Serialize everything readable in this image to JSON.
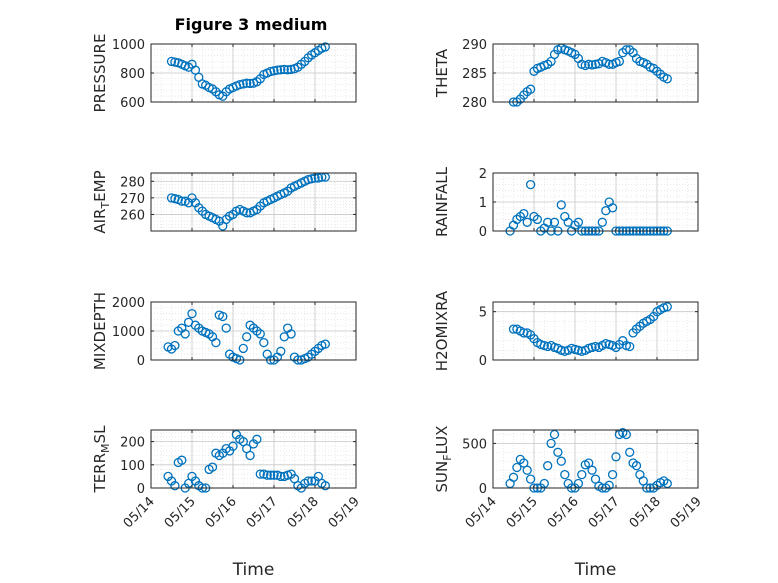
{
  "title": "Figure 3 medium",
  "marker_color": "#0072BD",
  "chart_data": [
    {
      "type": "scatter",
      "ylabel": "PRESSURE",
      "xlabel": "",
      "xlim": [
        "05/14",
        "05/19"
      ],
      "ylim": [
        600,
        1000
      ],
      "yticks": [
        600,
        800,
        1000
      ],
      "x_ticklabels": [],
      "x": [
        "05/14 12:00",
        "05/14 14:00",
        "05/14 16:00",
        "05/14 18:00",
        "05/14 20:00",
        "05/14 22:00",
        "05/15 00:00",
        "05/15 02:00",
        "05/15 04:00",
        "05/15 06:00",
        "05/15 08:00",
        "05/15 10:00",
        "05/15 12:00",
        "05/15 14:00",
        "05/15 16:00",
        "05/15 18:00",
        "05/15 20:00",
        "05/15 22:00",
        "05/16 00:00",
        "05/16 02:00",
        "05/16 04:00",
        "05/16 06:00",
        "05/16 08:00",
        "05/16 10:00",
        "05/16 12:00",
        "05/16 14:00",
        "05/16 16:00",
        "05/16 18:00",
        "05/16 20:00",
        "05/16 22:00",
        "05/17 00:00",
        "05/17 02:00",
        "05/17 04:00",
        "05/17 06:00",
        "05/17 08:00",
        "05/17 10:00",
        "05/17 12:00",
        "05/17 14:00",
        "05/17 16:00",
        "05/17 18:00",
        "05/17 20:00",
        "05/17 22:00",
        "05/18 00:00",
        "05/18 02:00",
        "05/18 04:00",
        "05/18 06:00"
      ],
      "y": [
        880,
        875,
        870,
        860,
        850,
        840,
        860,
        820,
        770,
        725,
        715,
        700,
        690,
        670,
        650,
        640,
        670,
        690,
        700,
        710,
        720,
        725,
        730,
        728,
        730,
        740,
        760,
        790,
        800,
        810,
        815,
        820,
        822,
        825,
        822,
        825,
        830,
        840,
        860,
        880,
        905,
        925,
        940,
        955,
        970,
        980
      ]
    },
    {
      "type": "scatter",
      "ylabel": "THETA",
      "xlabel": "",
      "xlim": [
        "05/14",
        "05/19"
      ],
      "ylim": [
        280,
        290
      ],
      "yticks": [
        280,
        285,
        290
      ],
      "x_ticklabels": [],
      "x": [
        "05/14 12:00",
        "05/14 14:00",
        "05/14 16:00",
        "05/14 18:00",
        "05/14 20:00",
        "05/14 22:00",
        "05/15 00:00",
        "05/15 02:00",
        "05/15 04:00",
        "05/15 06:00",
        "05/15 08:00",
        "05/15 10:00",
        "05/15 12:00",
        "05/15 14:00",
        "05/15 16:00",
        "05/15 18:00",
        "05/15 20:00",
        "05/15 22:00",
        "05/16 00:00",
        "05/16 02:00",
        "05/16 04:00",
        "05/16 06:00",
        "05/16 08:00",
        "05/16 10:00",
        "05/16 12:00",
        "05/16 14:00",
        "05/16 16:00",
        "05/16 18:00",
        "05/16 20:00",
        "05/16 22:00",
        "05/17 00:00",
        "05/17 02:00",
        "05/17 04:00",
        "05/17 06:00",
        "05/17 08:00",
        "05/17 10:00",
        "05/17 12:00",
        "05/17 14:00",
        "05/17 16:00",
        "05/17 18:00",
        "05/17 20:00",
        "05/17 22:00",
        "05/18 00:00",
        "05/18 02:00",
        "05/18 04:00",
        "05/18 06:00"
      ],
      "y": [
        280.0,
        280.0,
        280.5,
        281.2,
        281.8,
        282.2,
        285.3,
        285.8,
        286.0,
        286.3,
        286.5,
        287.0,
        288.2,
        289.0,
        289.3,
        289.0,
        288.8,
        288.5,
        288.2,
        287.5,
        286.5,
        286.3,
        286.5,
        286.4,
        286.5,
        286.6,
        287.0,
        286.8,
        286.5,
        286.5,
        286.8,
        287.0,
        288.5,
        289.0,
        289.0,
        288.5,
        287.5,
        287.0,
        286.8,
        286.5,
        286.0,
        285.8,
        285.3,
        284.8,
        284.3,
        284.0
      ]
    },
    {
      "type": "scatter",
      "ylabel": "AIR_TEMP",
      "xlabel": "",
      "xlim": [
        "05/14",
        "05/19"
      ],
      "ylim": [
        250,
        285
      ],
      "yticks": [
        260,
        270,
        280
      ],
      "x_ticklabels": [],
      "x": [
        "05/14 12:00",
        "05/14 14:00",
        "05/14 16:00",
        "05/14 18:00",
        "05/14 20:00",
        "05/14 22:00",
        "05/15 00:00",
        "05/15 02:00",
        "05/15 04:00",
        "05/15 06:00",
        "05/15 08:00",
        "05/15 10:00",
        "05/15 12:00",
        "05/15 14:00",
        "05/15 16:00",
        "05/15 18:00",
        "05/15 20:00",
        "05/15 22:00",
        "05/16 00:00",
        "05/16 02:00",
        "05/16 04:00",
        "05/16 06:00",
        "05/16 08:00",
        "05/16 10:00",
        "05/16 12:00",
        "05/16 14:00",
        "05/16 16:00",
        "05/16 18:00",
        "05/16 20:00",
        "05/16 22:00",
        "05/17 00:00",
        "05/17 02:00",
        "05/17 04:00",
        "05/17 06:00",
        "05/17 08:00",
        "05/17 10:00",
        "05/17 12:00",
        "05/17 14:00",
        "05/17 16:00",
        "05/17 18:00",
        "05/17 20:00",
        "05/17 22:00",
        "05/18 00:00",
        "05/18 02:00",
        "05/18 04:00",
        "05/18 06:00"
      ],
      "y": [
        270,
        269.5,
        269,
        268,
        268,
        267,
        270,
        267,
        264,
        262,
        260,
        259,
        258,
        257,
        256,
        253,
        257,
        259,
        260,
        262,
        263,
        262,
        261,
        261,
        262,
        263,
        265,
        267,
        268,
        269,
        270,
        271,
        272,
        273,
        274,
        276,
        277,
        278,
        279,
        280,
        281,
        281.5,
        282,
        282,
        282.5,
        282.5
      ]
    },
    {
      "type": "scatter",
      "ylabel": "RAINFALL",
      "xlabel": "",
      "xlim": [
        "05/14",
        "05/19"
      ],
      "ylim": [
        0,
        2
      ],
      "yticks": [
        0,
        1,
        2
      ],
      "x_ticklabels": [],
      "x": [
        "05/14 10:00",
        "05/14 12:00",
        "05/14 14:00",
        "05/14 16:00",
        "05/14 18:00",
        "05/14 20:00",
        "05/14 22:00",
        "05/15 00:00",
        "05/15 02:00",
        "05/15 04:00",
        "05/15 06:00",
        "05/15 08:00",
        "05/15 10:00",
        "05/15 12:00",
        "05/15 14:00",
        "05/15 16:00",
        "05/15 18:00",
        "05/15 20:00",
        "05/15 22:00",
        "05/16 00:00",
        "05/16 02:00",
        "05/16 04:00",
        "05/16 06:00",
        "05/16 08:00",
        "05/16 10:00",
        "05/16 12:00",
        "05/16 14:00",
        "05/16 16:00",
        "05/16 18:00",
        "05/16 20:00",
        "05/16 22:00",
        "05/17 00:00",
        "05/17 02:00",
        "05/17 04:00",
        "05/17 06:00",
        "05/17 08:00",
        "05/17 10:00",
        "05/17 12:00",
        "05/17 14:00",
        "05/17 16:00",
        "05/17 18:00",
        "05/17 20:00",
        "05/17 22:00",
        "05/18 00:00",
        "05/18 02:00",
        "05/18 04:00",
        "05/18 06:00"
      ],
      "y": [
        0.0,
        0.2,
        0.4,
        0.5,
        0.6,
        0.3,
        1.6,
        0.5,
        0.4,
        0.0,
        0.1,
        0.3,
        0.0,
        0.3,
        0.0,
        0.9,
        0.5,
        0.3,
        0.0,
        0.2,
        0.3,
        0.0,
        0.0,
        0.0,
        0.0,
        0.0,
        0.0,
        0.3,
        0.7,
        1.0,
        0.8,
        0.0,
        0.0,
        0.0,
        0.0,
        0.0,
        0.0,
        0.0,
        0.0,
        0.0,
        0.0,
        0.0,
        0.0,
        0.0,
        0.0,
        0.0,
        0.0
      ]
    },
    {
      "type": "scatter",
      "ylabel": "MIXDEPTH",
      "xlabel": "",
      "xlim": [
        "05/14",
        "05/19"
      ],
      "ylim": [
        0,
        2000
      ],
      "yticks": [
        0,
        1000,
        2000
      ],
      "x_ticklabels": [],
      "x": [
        "05/14 10:00",
        "05/14 12:00",
        "05/14 14:00",
        "05/14 16:00",
        "05/14 18:00",
        "05/14 20:00",
        "05/14 22:00",
        "05/15 00:00",
        "05/15 02:00",
        "05/15 04:00",
        "05/15 06:00",
        "05/15 08:00",
        "05/15 10:00",
        "05/15 12:00",
        "05/15 14:00",
        "05/15 16:00",
        "05/15 18:00",
        "05/15 20:00",
        "05/15 22:00",
        "05/16 00:00",
        "05/16 02:00",
        "05/16 04:00",
        "05/16 06:00",
        "05/16 08:00",
        "05/16 10:00",
        "05/16 12:00",
        "05/16 14:00",
        "05/16 16:00",
        "05/16 18:00",
        "05/16 20:00",
        "05/16 22:00",
        "05/17 00:00",
        "05/17 02:00",
        "05/17 04:00",
        "05/17 06:00",
        "05/17 08:00",
        "05/17 10:00",
        "05/17 12:00",
        "05/17 14:00",
        "05/17 16:00",
        "05/17 18:00",
        "05/17 20:00",
        "05/17 22:00",
        "05/18 00:00",
        "05/18 02:00",
        "05/18 04:00",
        "05/18 06:00"
      ],
      "y": [
        450,
        380,
        500,
        1000,
        1100,
        900,
        1300,
        1600,
        1200,
        1100,
        1000,
        950,
        900,
        800,
        600,
        1550,
        1500,
        1100,
        200,
        100,
        50,
        0,
        400,
        800,
        1200,
        1100,
        1000,
        900,
        600,
        200,
        0,
        0,
        100,
        300,
        800,
        1100,
        900,
        100,
        0,
        0,
        50,
        100,
        200,
        300,
        400,
        500,
        550
      ]
    },
    {
      "type": "scatter",
      "ylabel": "H2OMIXRA",
      "xlabel": "",
      "xlim": [
        "05/14",
        "05/19"
      ],
      "ylim": [
        0,
        6
      ],
      "yticks": [
        0,
        5
      ],
      "x_ticklabels": [],
      "x": [
        "05/14 12:00",
        "05/14 14:00",
        "05/14 16:00",
        "05/14 18:00",
        "05/14 20:00",
        "05/14 22:00",
        "05/15 00:00",
        "05/15 02:00",
        "05/15 04:00",
        "05/15 06:00",
        "05/15 08:00",
        "05/15 10:00",
        "05/15 12:00",
        "05/15 14:00",
        "05/15 16:00",
        "05/15 18:00",
        "05/15 20:00",
        "05/15 22:00",
        "05/16 00:00",
        "05/16 02:00",
        "05/16 04:00",
        "05/16 06:00",
        "05/16 08:00",
        "05/16 10:00",
        "05/16 12:00",
        "05/16 14:00",
        "05/16 16:00",
        "05/16 18:00",
        "05/16 20:00",
        "05/16 22:00",
        "05/17 00:00",
        "05/17 02:00",
        "05/17 04:00",
        "05/17 06:00",
        "05/17 08:00",
        "05/17 10:00",
        "05/17 12:00",
        "05/17 14:00",
        "05/17 16:00",
        "05/17 18:00",
        "05/17 20:00",
        "05/17 22:00",
        "05/18 00:00",
        "05/18 02:00",
        "05/18 04:00",
        "05/18 06:00"
      ],
      "y": [
        3.2,
        3.2,
        3.0,
        2.8,
        2.8,
        2.6,
        2.2,
        1.8,
        1.6,
        1.5,
        1.4,
        1.5,
        1.3,
        1.2,
        1.0,
        0.9,
        1.0,
        1.2,
        1.1,
        1.0,
        0.9,
        1.0,
        1.2,
        1.3,
        1.4,
        1.3,
        1.5,
        1.7,
        1.6,
        1.5,
        1.3,
        1.6,
        2.0,
        1.5,
        1.4,
        2.8,
        3.2,
        3.5,
        3.8,
        4.0,
        4.2,
        4.5,
        5.0,
        5.2,
        5.4,
        5.5
      ]
    },
    {
      "type": "scatter",
      "ylabel": "TERR_MSL",
      "xlabel": "Time",
      "xlim": [
        "05/14",
        "05/19"
      ],
      "ylim": [
        0,
        250
      ],
      "yticks": [
        0,
        100,
        200
      ],
      "x_ticklabels": [
        "05/14",
        "05/15",
        "05/16",
        "05/17",
        "05/18",
        "05/19"
      ],
      "x": [
        "05/14 10:00",
        "05/14 12:00",
        "05/14 14:00",
        "05/14 16:00",
        "05/14 18:00",
        "05/14 20:00",
        "05/14 22:00",
        "05/15 00:00",
        "05/15 02:00",
        "05/15 04:00",
        "05/15 06:00",
        "05/15 08:00",
        "05/15 10:00",
        "05/15 12:00",
        "05/15 14:00",
        "05/15 16:00",
        "05/15 18:00",
        "05/15 20:00",
        "05/15 22:00",
        "05/16 00:00",
        "05/16 02:00",
        "05/16 04:00",
        "05/16 06:00",
        "05/16 08:00",
        "05/16 10:00",
        "05/16 12:00",
        "05/16 14:00",
        "05/16 16:00",
        "05/16 18:00",
        "05/16 20:00",
        "05/16 22:00",
        "05/17 00:00",
        "05/17 02:00",
        "05/17 04:00",
        "05/17 06:00",
        "05/17 08:00",
        "05/17 10:00",
        "05/17 12:00",
        "05/17 14:00",
        "05/17 16:00",
        "05/17 18:00",
        "05/17 20:00",
        "05/17 22:00",
        "05/18 00:00",
        "05/18 02:00",
        "05/18 04:00",
        "05/18 06:00"
      ],
      "y": [
        50,
        30,
        10,
        110,
        120,
        0,
        20,
        50,
        30,
        10,
        0,
        0,
        80,
        90,
        150,
        140,
        150,
        170,
        160,
        180,
        230,
        210,
        200,
        170,
        140,
        190,
        210,
        60,
        60,
        55,
        55,
        55,
        55,
        50,
        50,
        55,
        60,
        40,
        10,
        0,
        20,
        30,
        30,
        30,
        50,
        20,
        10
      ]
    },
    {
      "type": "scatter",
      "ylabel": "SUN_FLUX",
      "xlabel": "Time",
      "xlim": [
        "05/14",
        "05/19"
      ],
      "ylim": [
        0,
        650
      ],
      "yticks": [
        0,
        500
      ],
      "x_ticklabels": [
        "05/14",
        "05/15",
        "05/16",
        "05/17",
        "05/18",
        "05/19"
      ],
      "x": [
        "05/14 10:00",
        "05/14 12:00",
        "05/14 14:00",
        "05/14 16:00",
        "05/14 18:00",
        "05/14 20:00",
        "05/14 22:00",
        "05/15 00:00",
        "05/15 02:00",
        "05/15 04:00",
        "05/15 06:00",
        "05/15 08:00",
        "05/15 10:00",
        "05/15 12:00",
        "05/15 14:00",
        "05/15 16:00",
        "05/15 18:00",
        "05/15 20:00",
        "05/15 22:00",
        "05/16 00:00",
        "05/16 02:00",
        "05/16 04:00",
        "05/16 06:00",
        "05/16 08:00",
        "05/16 10:00",
        "05/16 12:00",
        "05/16 14:00",
        "05/16 16:00",
        "05/16 18:00",
        "05/16 20:00",
        "05/16 22:00",
        "05/17 00:00",
        "05/17 02:00",
        "05/17 04:00",
        "05/17 06:00",
        "05/17 08:00",
        "05/17 10:00",
        "05/17 12:00",
        "05/17 14:00",
        "05/17 16:00",
        "05/17 18:00",
        "05/17 20:00",
        "05/17 22:00",
        "05/18 00:00",
        "05/18 02:00",
        "05/18 04:00",
        "05/18 06:00"
      ],
      "y": [
        50,
        120,
        230,
        320,
        280,
        200,
        100,
        0,
        0,
        0,
        50,
        250,
        500,
        600,
        400,
        300,
        150,
        50,
        0,
        0,
        50,
        150,
        260,
        280,
        200,
        100,
        20,
        0,
        0,
        30,
        150,
        350,
        600,
        620,
        600,
        400,
        280,
        250,
        150,
        80,
        0,
        0,
        0,
        30,
        60,
        80,
        50
      ]
    }
  ]
}
